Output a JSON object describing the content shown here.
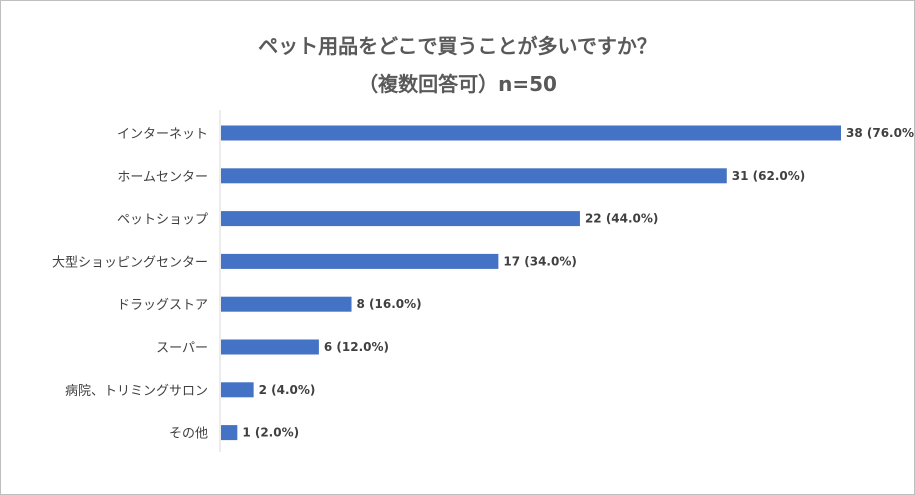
{
  "chart_data": {
    "type": "bar",
    "orientation": "horizontal",
    "title_line1": "ペット用品をどこで買うことが多いですか？",
    "title_line2": "（複数回答可）n=50",
    "categories": [
      "インターネット",
      "ホームセンター",
      "ペットショップ",
      "大型ショッピングセンター",
      "ドラッグストア",
      "スーパー",
      "病院、トリミングサロン",
      "その他"
    ],
    "values": [
      38,
      31,
      22,
      17,
      8,
      6,
      2,
      1
    ],
    "data_labels": [
      "38 (76.0%)",
      "31 (62.0%)",
      "22 (44.0%)",
      "17 (34.0%)",
      "8 (16.0%)",
      "6 (12.0%)",
      "2 (4.0%)",
      "1 (2.0%)"
    ],
    "xlim": [
      0,
      38
    ],
    "bar_color": "#4472C4",
    "axis_color": "#d9d9d9",
    "grid": false,
    "legend": "none"
  }
}
